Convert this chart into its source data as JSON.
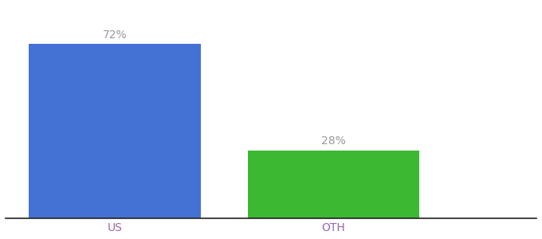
{
  "categories": [
    "US",
    "OTH"
  ],
  "values": [
    72,
    28
  ],
  "bar_colors": [
    "#4472d4",
    "#3cb832"
  ],
  "background_color": "#ffffff",
  "ylim": [
    0,
    88
  ],
  "bar_width": 0.55,
  "label_color": "#999999",
  "label_fontsize": 10,
  "tick_color": "#9966aa",
  "tick_fontsize": 10,
  "spine_color": "#222222",
  "bar_positions": [
    0.35,
    1.05
  ],
  "xlim": [
    0.0,
    1.7
  ]
}
